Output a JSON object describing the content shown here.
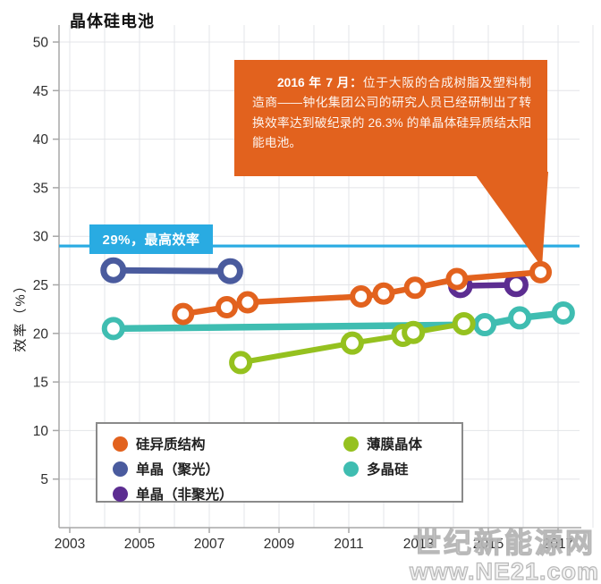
{
  "title": "晶体硅电池",
  "ylabel": "效率（%）",
  "annotation_29": "29%，最高效率",
  "callout": {
    "lead": "2016 年 7 月：",
    "body": "位于大阪的合成树脂及塑料制造商——钟化集团公司的研究人员已经研制出了转换效率达到破纪录的 26.3% 的单晶体硅异质结太阳能电池。"
  },
  "watermark": {
    "line1": "世纪新能源网",
    "line2": "www.NE21.com"
  },
  "chart_data": {
    "type": "line",
    "title": "晶体硅电池",
    "xlabel": "",
    "ylabel": "效率（%）",
    "xlim": [
      2002.7,
      2018
    ],
    "ylim": [
      0,
      50
    ],
    "x_ticks": [
      2003,
      2005,
      2007,
      2009,
      2011,
      2013,
      2015,
      2017
    ],
    "y_ticks": [
      5,
      10,
      15,
      20,
      25,
      30,
      35,
      40,
      45,
      50
    ],
    "grid": true,
    "legend_position": "bottom",
    "reference_line": {
      "y": 29,
      "label": "29%，最高效率",
      "color": "#29ABE2"
    },
    "series": [
      {
        "name": "硅异质结构",
        "color": "#E2621E",
        "points": [
          [
            2006.25,
            22.0
          ],
          [
            2007.5,
            22.7
          ],
          [
            2008.1,
            23.2
          ],
          [
            2011.35,
            23.8
          ],
          [
            2012.0,
            24.1
          ],
          [
            2012.9,
            24.7
          ],
          [
            2014.1,
            25.6
          ],
          [
            2016.5,
            26.3
          ]
        ]
      },
      {
        "name": "单晶（聚光）",
        "color": "#4A5B9E",
        "points": [
          [
            2004.25,
            26.5
          ],
          [
            2007.6,
            26.4
          ]
        ]
      },
      {
        "name": "单晶（非聚光）",
        "color": "#5C2D91",
        "points": [
          [
            2014.2,
            24.9
          ],
          [
            2015.8,
            25.0
          ]
        ]
      },
      {
        "name": "薄膜晶体",
        "color": "#95C11F",
        "points": [
          [
            2007.9,
            17.0
          ],
          [
            2011.1,
            19.0
          ],
          [
            2012.55,
            19.8
          ],
          [
            2012.85,
            20.1
          ],
          [
            2014.3,
            21.0
          ]
        ]
      },
      {
        "name": "多晶硅",
        "color": "#3FBDB1",
        "points": [
          [
            2004.25,
            20.5
          ],
          [
            2014.9,
            20.9
          ],
          [
            2015.9,
            21.6
          ],
          [
            2017.15,
            22.1
          ]
        ]
      }
    ]
  }
}
